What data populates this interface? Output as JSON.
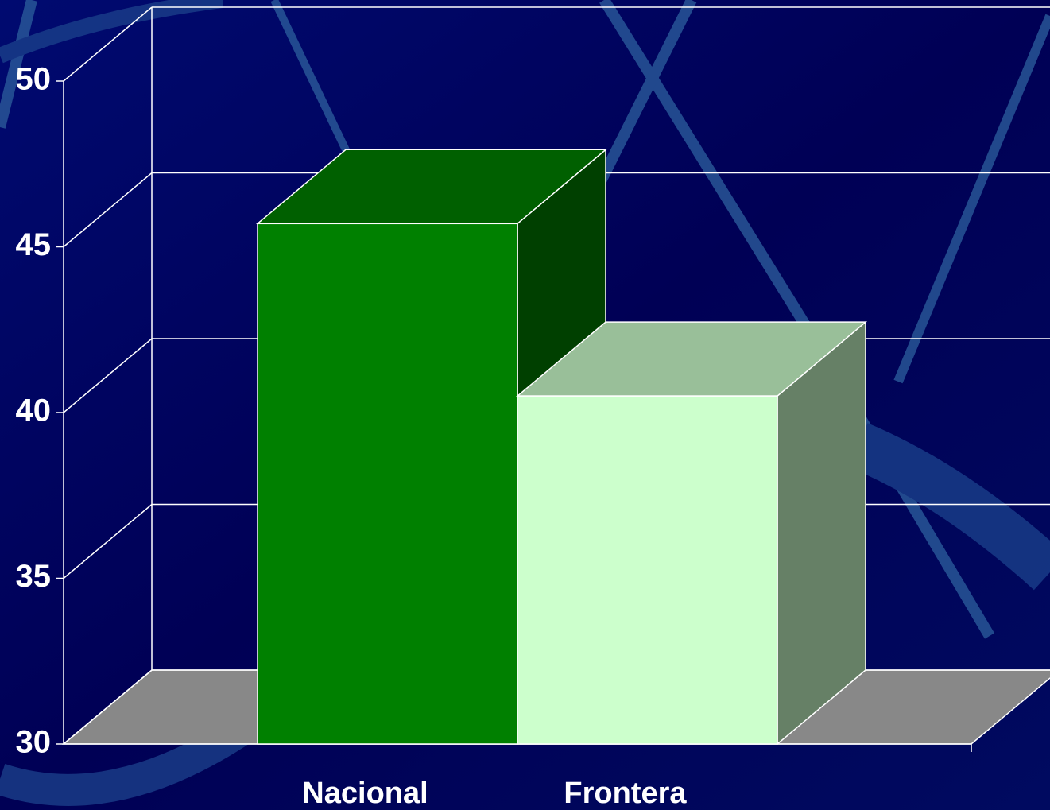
{
  "chart_data": {
    "type": "bar3d",
    "categories": [
      "Nacional",
      "Frontera"
    ],
    "series": [
      {
        "values": [
          45.7,
          40.5
        ],
        "colors": [
          "#008000",
          "#ccffcc"
        ],
        "side_colors": [
          "#004000",
          "#668066"
        ],
        "top_colors": [
          "#006000",
          "#99bf99"
        ]
      }
    ],
    "ylim": [
      30,
      50
    ],
    "yticks": [
      30,
      35,
      40,
      45,
      50
    ],
    "grid": true
  }
}
